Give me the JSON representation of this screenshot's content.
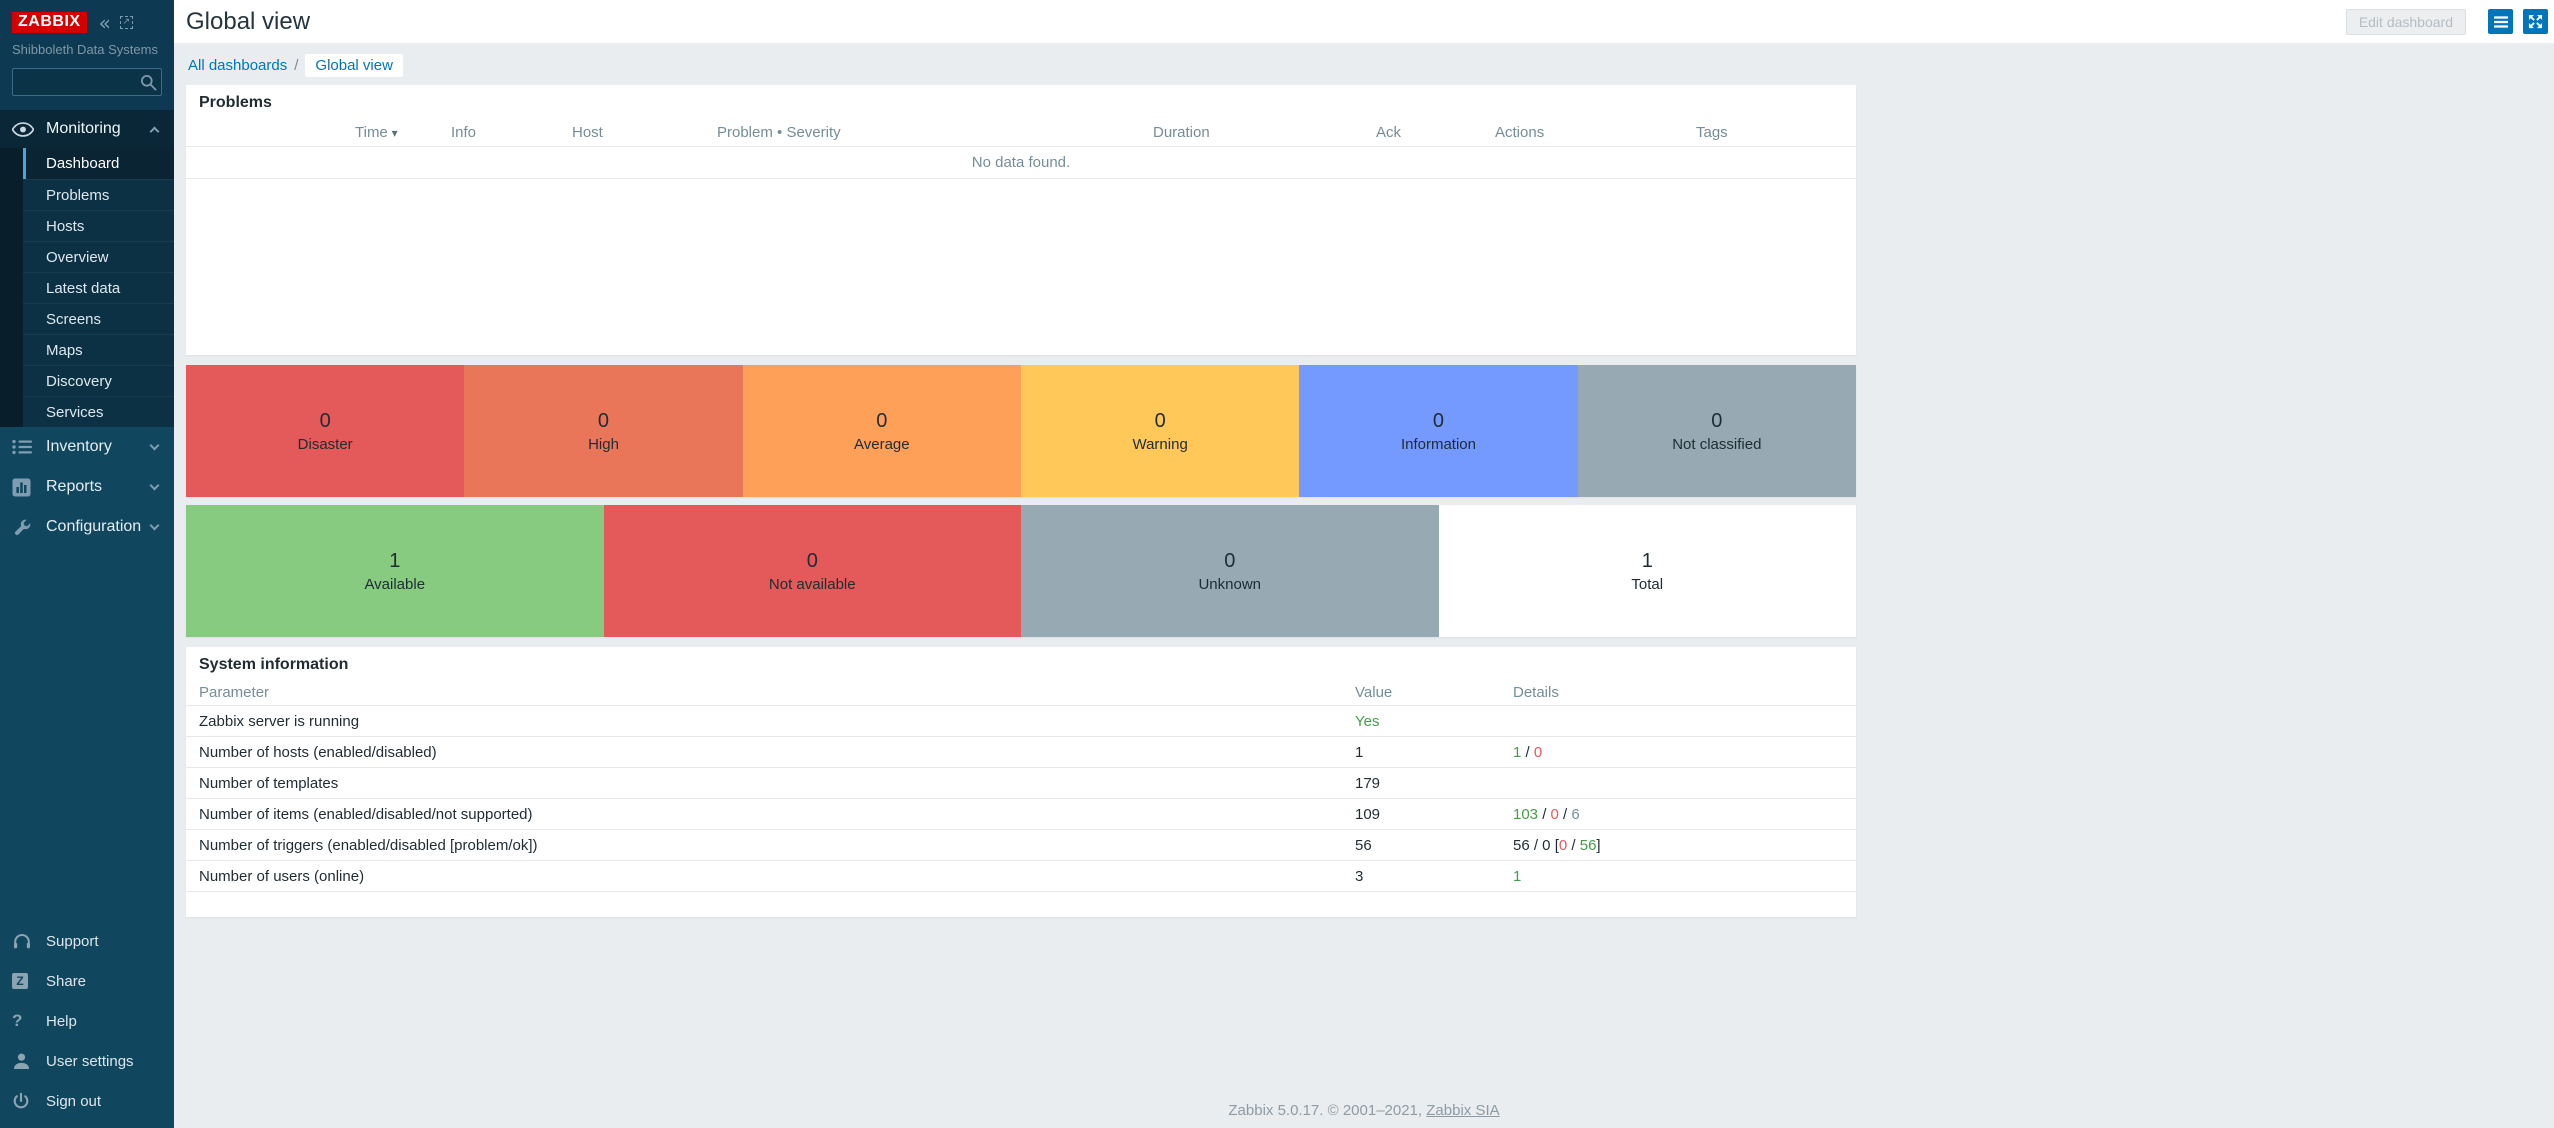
{
  "brand": {
    "logo_text": "ZABBIX",
    "org_name": "Shibboleth Data Systems"
  },
  "sidebar": {
    "search": {
      "placeholder": "",
      "value": ""
    },
    "monitoring": {
      "label": "Monitoring",
      "items": [
        "Dashboard",
        "Problems",
        "Hosts",
        "Overview",
        "Latest data",
        "Screens",
        "Maps",
        "Discovery",
        "Services"
      ],
      "active_item": "Dashboard"
    },
    "sections": [
      {
        "label": "Inventory"
      },
      {
        "label": "Reports"
      },
      {
        "label": "Configuration"
      }
    ],
    "footer_items": [
      "Support",
      "Share",
      "Help",
      "User settings",
      "Sign out"
    ],
    "share_icon_letter": "Z",
    "help_icon_glyph": "?"
  },
  "header": {
    "title": "Global view",
    "edit_button_label": "Edit dashboard"
  },
  "breadcrumb": {
    "link": "All dashboards",
    "separator": "/",
    "current": "Global view"
  },
  "problems": {
    "title": "Problems",
    "columns": [
      "Time",
      "Info",
      "Host",
      "Problem • Severity",
      "Duration",
      "Ack",
      "Actions",
      "Tags"
    ],
    "sort_column": "Time",
    "sort_indicator": "▾",
    "empty_text": "No data found."
  },
  "severity_blocks": [
    {
      "count": "0",
      "label": "Disaster",
      "color": "#e45959"
    },
    {
      "count": "0",
      "label": "High",
      "color": "#e97659"
    },
    {
      "count": "0",
      "label": "Average",
      "color": "#ffa059"
    },
    {
      "count": "0",
      "label": "Warning",
      "color": "#ffc859"
    },
    {
      "count": "0",
      "label": "Information",
      "color": "#7499ff"
    },
    {
      "count": "0",
      "label": "Not classified",
      "color": "#97aab3"
    }
  ],
  "availability_blocks": [
    {
      "count": "1",
      "label": "Available",
      "color": "#86cb80"
    },
    {
      "count": "0",
      "label": "Not available",
      "color": "#e45959"
    },
    {
      "count": "0",
      "label": "Unknown",
      "color": "#97aab3"
    },
    {
      "count": "1",
      "label": "Total",
      "color": "#ffffff"
    }
  ],
  "system_info": {
    "title": "System information",
    "columns": [
      "Parameter",
      "Value",
      "Details"
    ],
    "rows": [
      {
        "parameter": "Zabbix server is running",
        "value": "Yes",
        "value_color": "green",
        "details": []
      },
      {
        "parameter": "Number of hosts (enabled/disabled)",
        "value": "1",
        "value_color": "dark",
        "details": [
          [
            "1",
            "green"
          ],
          [
            " / ",
            "dark"
          ],
          [
            "0",
            "red"
          ]
        ]
      },
      {
        "parameter": "Number of templates",
        "value": "179",
        "value_color": "dark",
        "details": []
      },
      {
        "parameter": "Number of items (enabled/disabled/not supported)",
        "value": "109",
        "value_color": "dark",
        "details": [
          [
            "103",
            "green"
          ],
          [
            " / ",
            "dark"
          ],
          [
            "0",
            "red"
          ],
          [
            " / ",
            "dark"
          ],
          [
            "6",
            "gray"
          ]
        ]
      },
      {
        "parameter": "Number of triggers (enabled/disabled [problem/ok])",
        "value": "56",
        "value_color": "dark",
        "details": [
          [
            "56 / 0 [",
            "dark"
          ],
          [
            "0",
            "red"
          ],
          [
            " / ",
            "dark"
          ],
          [
            "56",
            "green"
          ],
          [
            "]",
            "dark"
          ]
        ]
      },
      {
        "parameter": "Number of users (online)",
        "value": "3",
        "value_color": "dark",
        "details": [
          [
            "1",
            "green"
          ]
        ]
      }
    ]
  },
  "page_footer": {
    "prefix": "Zabbix 5.0.17. © 2001–2021, ",
    "link": "Zabbix SIA"
  },
  "status_colors": {
    "green": "#429e47",
    "red": "#e45959",
    "gray": "#768d99",
    "dark": "#1f2c33",
    "link-blue": "#0275b8"
  }
}
